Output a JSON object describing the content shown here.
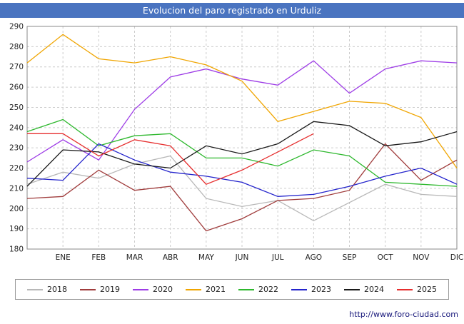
{
  "title": "Evolucion del paro registrado en Urduliz",
  "footer": {
    "url": "http://www.foro-ciudad.com"
  },
  "colors": {
    "title_bar": "#4a74c0",
    "grid": "#cccccc",
    "plot_border": "#888888"
  },
  "chart_data": {
    "type": "line",
    "title": "Evolucion del paro registrado en Urduliz",
    "xlabel": "",
    "ylabel": "",
    "ylim": [
      180,
      290
    ],
    "ytick": 10,
    "grid": true,
    "legend_position": "bottom",
    "categories": [
      "ENE",
      "FEB",
      "MAR",
      "ABR",
      "MAY",
      "JUN",
      "JUL",
      "AGO",
      "SEP",
      "OCT",
      "NOV",
      "DIC"
    ],
    "note": "Each series also has an unlabeled data point at the left axis edge (value 'start'); 2025 ends at AGO.",
    "series": [
      {
        "name": "2018",
        "color": "#b8b8b8",
        "start": 212,
        "values": [
          218,
          215,
          222,
          226,
          205,
          201,
          204,
          194,
          203,
          212,
          207,
          206
        ]
      },
      {
        "name": "2019",
        "color": "#a03c3c",
        "start": 205,
        "values": [
          206,
          219,
          209,
          211,
          189,
          195,
          204,
          205,
          209,
          232,
          214,
          224
        ]
      },
      {
        "name": "2020",
        "color": "#9d3ce6",
        "start": 223,
        "values": [
          234,
          224,
          249,
          265,
          269,
          264,
          261,
          273,
          257,
          269,
          273,
          272
        ]
      },
      {
        "name": "2021",
        "color": "#f0a500",
        "start": 272,
        "values": [
          286,
          274,
          272,
          275,
          271,
          263,
          243,
          248,
          253,
          252,
          245,
          220
        ]
      },
      {
        "name": "2022",
        "color": "#2eb82e",
        "start": 238,
        "values": [
          244,
          231,
          236,
          237,
          225,
          225,
          221,
          229,
          226,
          213,
          212,
          211
        ]
      },
      {
        "name": "2023",
        "color": "#2424cc",
        "start": 215,
        "values": [
          214,
          232,
          224,
          218,
          216,
          213,
          206,
          207,
          211,
          216,
          220,
          212
        ]
      },
      {
        "name": "2024",
        "color": "#1a1a1a",
        "start": 211,
        "values": [
          229,
          228,
          222,
          220,
          231,
          227,
          232,
          243,
          241,
          231,
          233,
          238
        ]
      },
      {
        "name": "2025",
        "color": "#e62e2e",
        "start": 237,
        "values": [
          237,
          226,
          234,
          231,
          212,
          219,
          228,
          237
        ]
      }
    ]
  }
}
